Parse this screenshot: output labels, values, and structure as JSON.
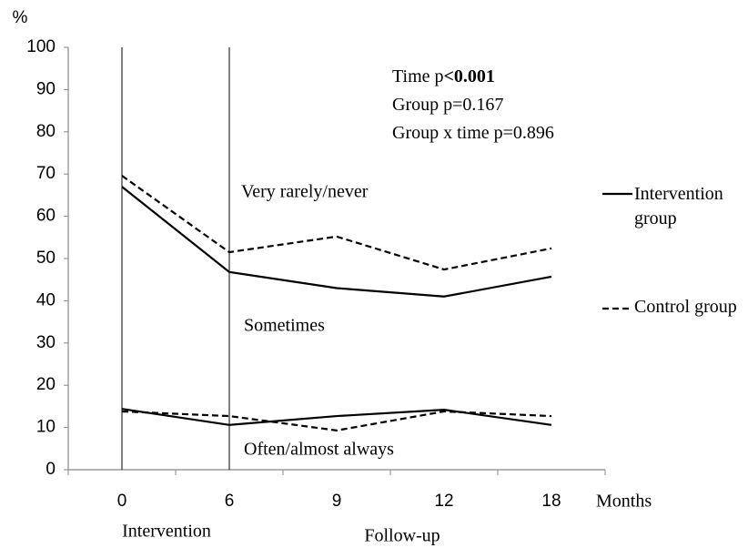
{
  "chart_data": {
    "type": "line",
    "y_label": "%",
    "x_label": "Months",
    "categories": [
      "0",
      "6",
      "9",
      "12",
      "18"
    ],
    "phases": [
      "Intervention",
      "Follow-up"
    ],
    "region_labels": [
      "Very rarely/never",
      "Sometimes",
      "Often/almost always"
    ],
    "stats": [
      [
        "Time p",
        "<0.001"
      ],
      [
        "Group  p=0.167"
      ],
      [
        "Group  x time p=0.896"
      ]
    ],
    "series": [
      {
        "name": "Intervention group",
        "color": "#000000",
        "dashed": false,
        "values": [
          67,
          46.8,
          43,
          41,
          45.7
        ],
        "lower_values": [
          14.4,
          10.6,
          12.7,
          14.2,
          10.6
        ]
      },
      {
        "name": "Control group",
        "color": "#000000",
        "dashed": true,
        "values": [
          69.6,
          51.5,
          55.2,
          47.4,
          52.4
        ],
        "lower_values": [
          13.8,
          12.7,
          9.3,
          13.8,
          12.7
        ]
      }
    ],
    "ylim": [
      0,
      100
    ],
    "yticks": [
      0,
      10,
      20,
      30,
      40,
      50,
      60,
      70,
      80,
      90,
      100
    ],
    "grid": false
  }
}
